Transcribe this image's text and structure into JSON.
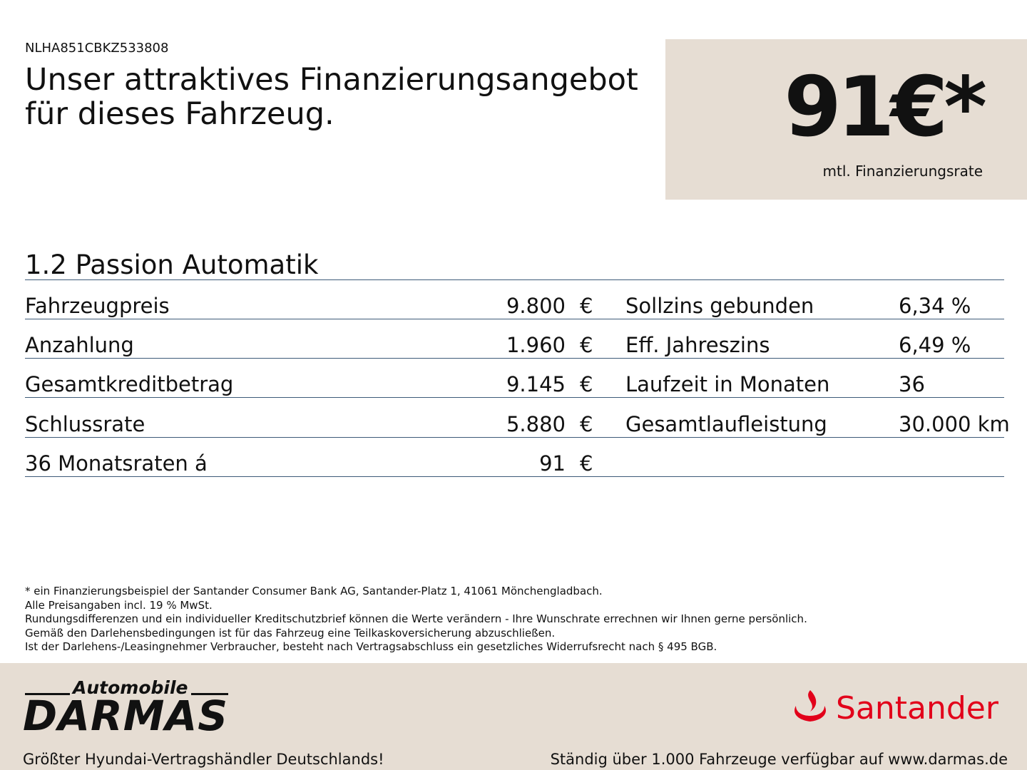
{
  "header": {
    "vin": "NLHA851CBKZ533808",
    "title_lines": [
      "Unser attraktives Finanzierungsangebot",
      "für dieses Fahrzeug."
    ]
  },
  "price_box": {
    "price": "91€*",
    "caption": "mtl. Finanzierungsrate"
  },
  "model": "1.2 Passion Automatik",
  "table": {
    "rows": [
      [
        "Fahrzeugpreis",
        "9.800",
        "€",
        "Sollzins gebunden",
        "6,34 %"
      ],
      [
        "Anzahlung",
        "1.960",
        "€",
        "Eff. Jahreszins",
        "6,49 %"
      ],
      [
        "Gesamtkreditbetrag",
        "9.145",
        "€",
        "Laufzeit in Monaten",
        "36"
      ],
      [
        "Schlussrate",
        "5.880",
        "€",
        "Gesamtlaufleistung",
        "30.000 km"
      ],
      [
        "36 Monatsraten á",
        "91",
        "€"
      ]
    ]
  },
  "footnotes": [
    "* ein Finanzierungsbeispiel der Santander Consumer Bank AG, Santander-Platz 1, 41061 Mönchengladbach.",
    "Alle Preisangaben incl. 19 % MwSt.",
    "Rundungsdifferenzen und ein individueller Kreditschutzbrief können die Werte verändern - Ihre Wunschrate errechnen wir Ihnen gerne persönlich.",
    "Gemäß den Darlehensbedingungen ist für das Fahrzeug eine Teilkaskoversicherung abzuschließen.",
    "Ist der Darlehens-/Leasingnehmer Verbraucher, besteht nach Vertragsabschluss ein gesetzliches Widerrufsrecht nach § 495 BGB."
  ],
  "footer": {
    "dealer_small": "Automobile",
    "dealer": "DARMAS",
    "bank": "Santander",
    "left_tagline": "Größter Hyundai-Vertragshändler Deutschlands!",
    "right_tagline": "Ständig über 1.000 Fahrzeuge verfügbar auf www.darmas.de"
  }
}
